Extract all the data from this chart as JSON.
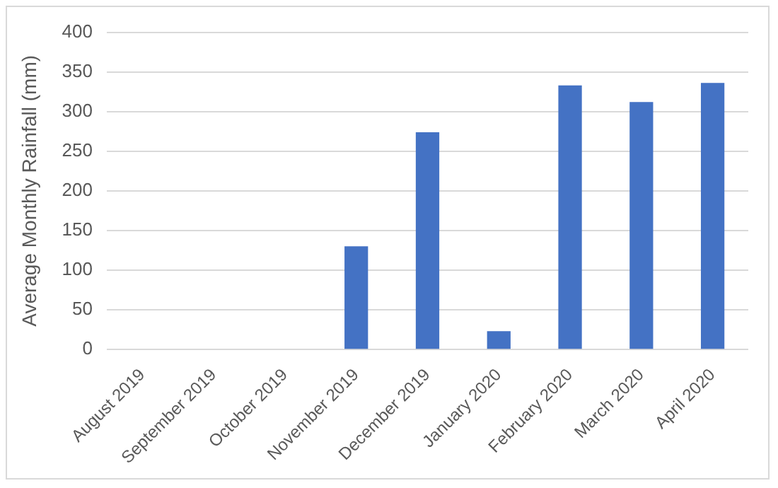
{
  "chart_data": {
    "type": "bar",
    "ylabel": "Average Monthly Rainfall (mm)",
    "categories": [
      "August 2019",
      "September 2019",
      "October 2019",
      "November 2019",
      "December 2019",
      "January 2020",
      "February 2020",
      "March 2020",
      "April 2020"
    ],
    "values": [
      0,
      0,
      0,
      130,
      274,
      23,
      333,
      312,
      336
    ],
    "color": "#4472c4",
    "ylim": [
      0,
      400
    ],
    "yticks": [
      0,
      50,
      100,
      150,
      200,
      250,
      300,
      350,
      400
    ],
    "grid": "y"
  }
}
